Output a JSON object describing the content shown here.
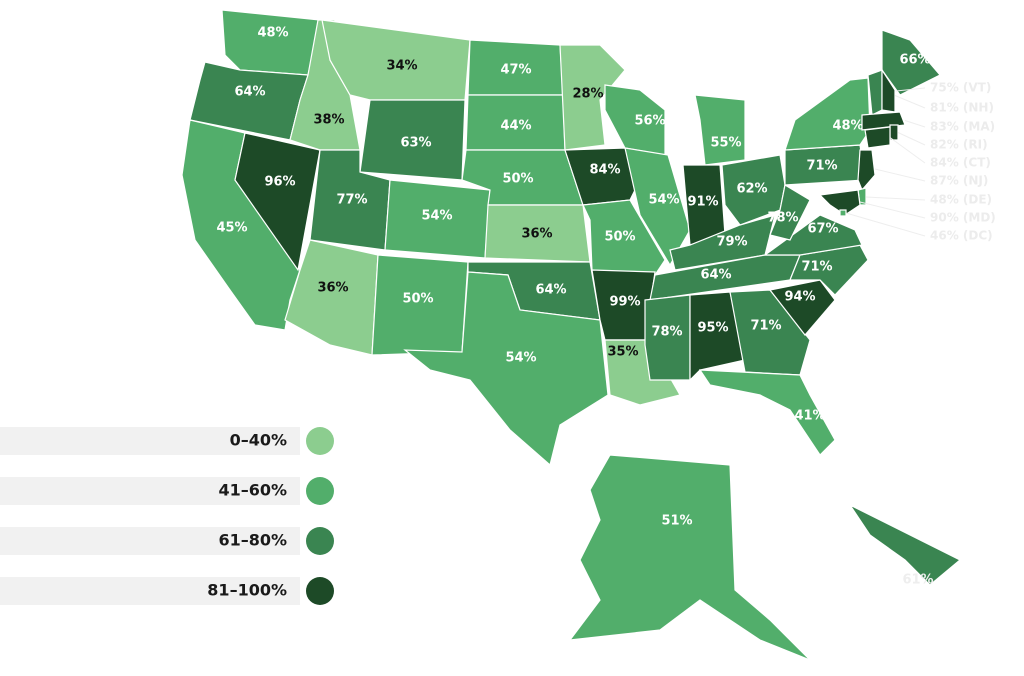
{
  "legend": {
    "items": [
      {
        "label": "0–40%",
        "color": "#8ccd8f"
      },
      {
        "label": "41–60%",
        "color": "#52ae6b"
      },
      {
        "label": "61–80%",
        "color": "#3a8551"
      },
      {
        "label": "81–100%",
        "color": "#1d4a27"
      }
    ]
  },
  "states": [
    {
      "label": "48%",
      "color": "#52ae6b"
    },
    {
      "label": "64%",
      "color": "#3a8551"
    },
    {
      "label": "45%",
      "color": "#52ae6b"
    },
    {
      "label": "96%",
      "color": "#1d4a27"
    },
    {
      "label": "38%",
      "color": "#8ccd8f"
    },
    {
      "label": "34%",
      "color": "#8ccd8f"
    },
    {
      "label": "63%",
      "color": "#3a8551"
    },
    {
      "label": "77%",
      "color": "#3a8551"
    },
    {
      "label": "54%",
      "color": "#52ae6b"
    },
    {
      "label": "36%",
      "color": "#8ccd8f"
    },
    {
      "label": "50%",
      "color": "#52ae6b"
    },
    {
      "label": "47%",
      "color": "#52ae6b"
    },
    {
      "label": "44%",
      "color": "#52ae6b"
    },
    {
      "label": "50%",
      "color": "#52ae6b"
    },
    {
      "label": "36%",
      "color": "#8ccd8f"
    },
    {
      "label": "64%",
      "color": "#3a8551"
    },
    {
      "label": "54%",
      "color": "#52ae6b"
    },
    {
      "label": "28%",
      "color": "#8ccd8f"
    },
    {
      "label": "84%",
      "color": "#1d4a27"
    },
    {
      "label": "50%",
      "color": "#52ae6b"
    },
    {
      "label": "99%",
      "color": "#1d4a27"
    },
    {
      "label": "35%",
      "color": "#8ccd8f"
    },
    {
      "label": "56%",
      "color": "#52ae6b"
    },
    {
      "label": "54%",
      "color": "#52ae6b"
    },
    {
      "label": "55%",
      "color": "#52ae6b"
    },
    {
      "label": "91%",
      "color": "#1d4a27"
    },
    {
      "label": "62%",
      "color": "#3a8551"
    },
    {
      "label": "79%",
      "color": "#3a8551"
    },
    {
      "label": "64%",
      "color": "#3a8551"
    },
    {
      "label": "78%",
      "color": "#3a8551"
    },
    {
      "label": "95%",
      "color": "#1d4a27"
    },
    {
      "label": "71%",
      "color": "#3a8551"
    },
    {
      "label": "41%",
      "color": "#52ae6b"
    },
    {
      "label": "94%",
      "color": "#1d4a27"
    },
    {
      "label": "71%",
      "color": "#3a8551"
    },
    {
      "label": "67%",
      "color": "#3a8551"
    },
    {
      "label": "78%",
      "color": "#3a8551"
    },
    {
      "label": "71%",
      "color": "#3a8551"
    },
    {
      "label": "48%",
      "color": "#52ae6b"
    },
    {
      "label": "66%",
      "color": "#3a8551"
    },
    {
      "label": "51%",
      "color": "#52ae6b"
    }
  ],
  "callouts": [
    {
      "label": "75% (VT)",
      "color": "#3a8551"
    },
    {
      "label": "81% (NH)",
      "color": "#1d4a27"
    },
    {
      "label": "83% (MA)",
      "color": "#1d4a27"
    },
    {
      "label": "82% (RI)",
      "color": "#1d4a27"
    },
    {
      "label": "84% (CT)",
      "color": "#1d4a27"
    },
    {
      "label": "87% (NJ)",
      "color": "#1d4a27"
    },
    {
      "label": "48% (DE)",
      "color": "#52ae6b"
    },
    {
      "label": "90% (MD)",
      "color": "#1d4a27"
    },
    {
      "label": "46% (DC)",
      "color": "#52ae6b"
    },
    {
      "label": "61%",
      "color": "#3a8551"
    }
  ]
}
